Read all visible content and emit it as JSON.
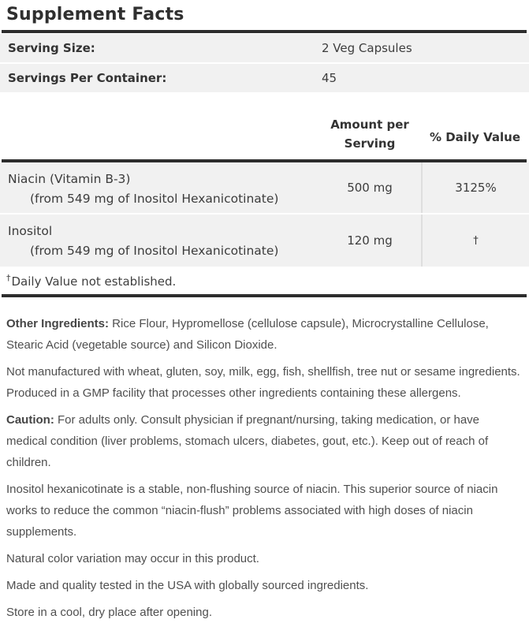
{
  "title": "Supplement Facts",
  "serving": {
    "rows": [
      {
        "label": "Serving Size:",
        "value": "2 Veg Capsules"
      },
      {
        "label": "Servings Per Container:",
        "value": "45"
      }
    ]
  },
  "columns": {
    "amount": "Amount per Serving",
    "daily_value": "% Daily Value"
  },
  "nutrients": [
    {
      "name": "Niacin (Vitamin B-3)",
      "detail": "(from 549 mg of Inositol Hexanicotinate)",
      "amount": "500 mg",
      "daily_value": "3125%"
    },
    {
      "name": "Inositol",
      "detail": "(from 549 mg of Inositol Hexanicotinate)",
      "amount": "120 mg",
      "daily_value": "†"
    }
  ],
  "footnote": {
    "symbol": "†",
    "text": "Daily Value not established."
  },
  "paragraphs": [
    {
      "lead": "Other Ingredients:",
      "text": " Rice Flour, Hypromellose (cellulose capsule), Microcrystalline Cellulose, Stearic Acid (vegetable source) and Silicon Dioxide."
    },
    {
      "lead": "",
      "text": "Not manufactured with wheat, gluten, soy, milk, egg, fish, shellfish, tree nut or sesame ingredients. Produced in a GMP facility that processes other ingredients containing these allergens."
    },
    {
      "lead": "Caution:",
      "text": " For adults only. Consult physician if pregnant/nursing, taking medication, or have medical condition (liver problems, stomach ulcers, diabetes, gout, etc.). Keep out of reach of children."
    },
    {
      "lead": "",
      "text": "Inositol hexanicotinate is a stable, non-flushing source of niacin. This superior source of niacin works to reduce the common “niacin-flush” problems associated with high doses of niacin supplements."
    },
    {
      "lead": "",
      "text": "Natural color variation may occur in this product."
    },
    {
      "lead": "",
      "text": "Made and quality tested in the USA with globally sourced ingredients."
    },
    {
      "lead": "",
      "text": "Store in a cool, dry place after opening."
    }
  ],
  "colors": {
    "bar": "#2d2d2d",
    "row_background": "#f1f1f1",
    "divider": "#dedede",
    "heading_text": "#2f2f2f",
    "body_text": "#4f4f4f"
  }
}
